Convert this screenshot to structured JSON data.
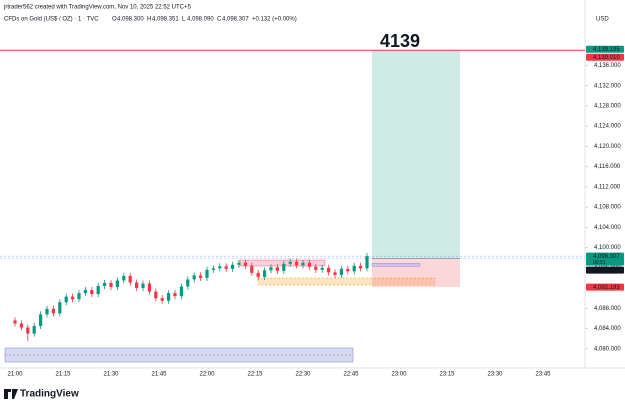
{
  "chart_data": {
    "type": "candlestick",
    "header": "jrtrader562 created with TradingView.com, Nov 10, 2025 22:52 UTC+5",
    "symbol": "CFDs on Gold (US$ / OZ) · 1 · TVC",
    "ohlc_legend": [
      {
        "key": "O",
        "value": 4098.3,
        "label": "4,098.300"
      },
      {
        "key": "H",
        "value": 4098.351,
        "label": "4,098.351"
      },
      {
        "key": "L",
        "value": 4098.09,
        "label": "4,098.090"
      },
      {
        "key": "C",
        "value": 4098.307,
        "label": "4,098.307"
      }
    ],
    "change": "+0.132 (+0.00%)",
    "currency": "USD",
    "annotation": "4139",
    "brand": "TradingView",
    "up_color": "#089981",
    "down_color": "#f23645",
    "ylim": [
      4076.2,
      4143.4
    ],
    "yticks": [
      {
        "value": 4080,
        "label": "4,080.000"
      },
      {
        "value": 4084,
        "label": "4,084.000"
      },
      {
        "value": 4088,
        "label": "4,088.000"
      },
      {
        "value": 4092,
        "label": "4,092.000"
      },
      {
        "value": 4096,
        "label": "4,096.000"
      },
      {
        "value": 4100,
        "label": "4,100.000"
      },
      {
        "value": 4104,
        "label": "4,104.000"
      },
      {
        "value": 4108,
        "label": "4,108.000"
      },
      {
        "value": 4112,
        "label": "4,112.000"
      },
      {
        "value": 4116,
        "label": "4,116.000"
      },
      {
        "value": 4120,
        "label": "4,120.000"
      },
      {
        "value": 4124,
        "label": "4,124.000"
      },
      {
        "value": 4128,
        "label": "4,128.000"
      },
      {
        "value": 4132,
        "label": "4,132.000"
      },
      {
        "value": 4136,
        "label": "4,136.000"
      }
    ],
    "xticks": [
      "21:00",
      "21:15",
      "21:30",
      "21:45",
      "22:00",
      "22:15",
      "22:30",
      "22:45",
      "23:00",
      "23:15",
      "23:30",
      "23:45"
    ],
    "price_tags": [
      {
        "value": 4139.195,
        "label": "4,139.195",
        "color": "#089981"
      },
      {
        "value": 4139.01,
        "label": "4,139.010",
        "color": "#f23645"
      },
      {
        "value": 4098.307,
        "label": "4,098.307",
        "color": "#089981",
        "sub": "00:51"
      },
      {
        "value": 4097.88,
        "label": "4,097.880",
        "color": "#131722"
      },
      {
        "value": 4092.193,
        "label": "4,092.193",
        "color": "#f23645"
      }
    ],
    "candles": [
      [
        4085.6,
        4086.2,
        4084.4,
        4085.0
      ],
      [
        4085.0,
        4085.6,
        4083.6,
        4084.2
      ],
      [
        4084.2,
        4084.8,
        4081.5,
        4083.0
      ],
      [
        4083.0,
        4085.1,
        4082.4,
        4084.5
      ],
      [
        4084.5,
        4087.4,
        4083.9,
        4086.8
      ],
      [
        4086.8,
        4088.5,
        4086.2,
        4087.9
      ],
      [
        4087.9,
        4088.5,
        4086.4,
        4087.0
      ],
      [
        4087.0,
        4089.8,
        4086.4,
        4089.2
      ],
      [
        4089.2,
        4090.9,
        4088.6,
        4090.3
      ],
      [
        4090.3,
        4090.9,
        4089.2,
        4089.8
      ],
      [
        4089.8,
        4091.6,
        4089.2,
        4091.0
      ],
      [
        4091.0,
        4092.2,
        4090.4,
        4091.6
      ],
      [
        4091.6,
        4092.2,
        4090.2,
        4090.8
      ],
      [
        4090.8,
        4093.0,
        4090.2,
        4092.4
      ],
      [
        4092.4,
        4093.6,
        4091.8,
        4093.0
      ],
      [
        4093.0,
        4093.6,
        4091.6,
        4092.2
      ],
      [
        4092.2,
        4094.1,
        4091.6,
        4093.5
      ],
      [
        4093.5,
        4095.0,
        4092.9,
        4094.4
      ],
      [
        4094.4,
        4095.0,
        4092.5,
        4093.1
      ],
      [
        4093.1,
        4093.7,
        4091.4,
        4092.0
      ],
      [
        4092.0,
        4093.5,
        4091.4,
        4092.9
      ],
      [
        4092.9,
        4093.5,
        4090.7,
        4091.3
      ],
      [
        4091.3,
        4091.9,
        4089.4,
        4090.0
      ],
      [
        4090.0,
        4090.6,
        4088.9,
        4089.5
      ],
      [
        4089.5,
        4091.6,
        4088.9,
        4091.0
      ],
      [
        4091.0,
        4091.6,
        4089.8,
        4090.4
      ],
      [
        4090.4,
        4092.9,
        4089.8,
        4092.3
      ],
      [
        4092.3,
        4094.3,
        4091.7,
        4093.7
      ],
      [
        4093.7,
        4095.1,
        4093.1,
        4094.5
      ],
      [
        4094.5,
        4095.1,
        4093.4,
        4094.0
      ],
      [
        4094.0,
        4096.2,
        4093.4,
        4095.6
      ],
      [
        4095.6,
        4096.5,
        4095.0,
        4095.9
      ],
      [
        4095.9,
        4096.9,
        4095.3,
        4096.3
      ],
      [
        4096.3,
        4096.9,
        4095.2,
        4095.8
      ],
      [
        4095.8,
        4097.2,
        4095.2,
        4096.6
      ],
      [
        4096.6,
        4097.6,
        4096.0,
        4097.0
      ],
      [
        4097.0,
        4097.6,
        4095.8,
        4096.4
      ],
      [
        4096.4,
        4097.0,
        4094.4,
        4095.0
      ],
      [
        4095.0,
        4095.6,
        4093.6,
        4094.2
      ],
      [
        4094.2,
        4096.1,
        4093.6,
        4095.5
      ],
      [
        4095.5,
        4096.7,
        4094.9,
        4096.1
      ],
      [
        4096.1,
        4096.7,
        4094.8,
        4095.4
      ],
      [
        4095.4,
        4097.4,
        4094.8,
        4096.8
      ],
      [
        4096.8,
        4097.8,
        4096.2,
        4097.2
      ],
      [
        4097.2,
        4097.8,
        4095.9,
        4096.5
      ],
      [
        4096.5,
        4097.6,
        4095.9,
        4097.0
      ],
      [
        4097.0,
        4097.6,
        4095.6,
        4096.2
      ],
      [
        4096.2,
        4096.8,
        4095.0,
        4095.6
      ],
      [
        4095.6,
        4096.6,
        4095.0,
        4096.0
      ],
      [
        4096.0,
        4096.6,
        4094.5,
        4095.1
      ],
      [
        4095.1,
        4095.7,
        4094.0,
        4094.6
      ],
      [
        4094.6,
        4096.4,
        4094.0,
        4095.8
      ],
      [
        4095.8,
        4096.4,
        4094.7,
        4095.3
      ],
      [
        4095.3,
        4097.0,
        4094.7,
        4096.4
      ],
      [
        4096.4,
        4097.0,
        4095.3,
        4095.9
      ],
      [
        4095.9,
        4098.9,
        4095.3,
        4098.307
      ]
    ]
  }
}
